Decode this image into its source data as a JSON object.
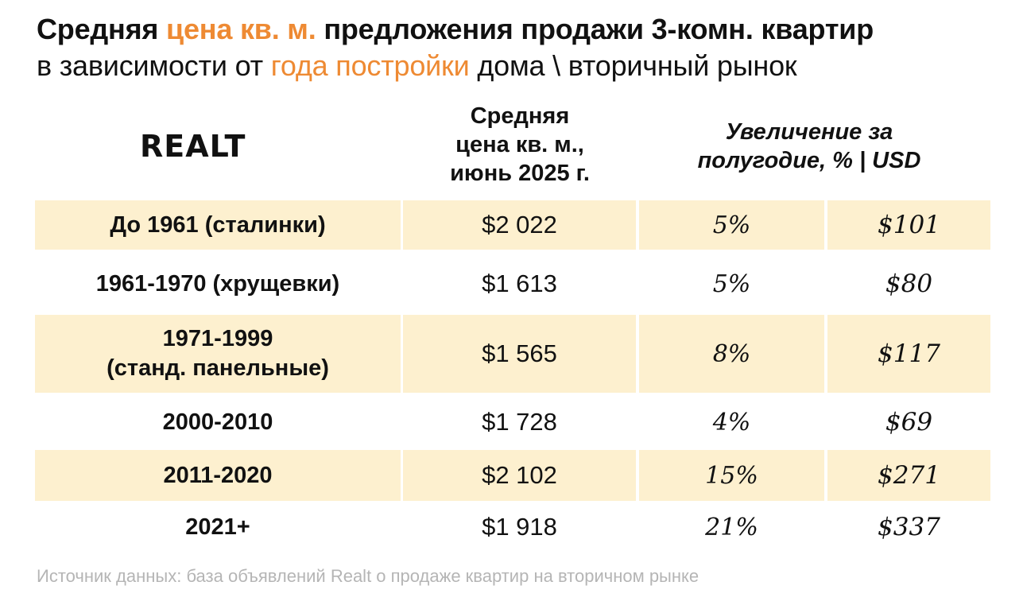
{
  "title": {
    "part1": "Средняя ",
    "accent1": "цена кв. м.",
    "part2": " предложения продажи 3-комн. квартир"
  },
  "subtitle": {
    "part1": "в зависимости от ",
    "accent2": "года постройки",
    "part2": " дома \\ вторичный рынок"
  },
  "logo": "REALT",
  "colors": {
    "accent": "#ee8a33",
    "row_shade": "#fdf0cf",
    "source_text": "#b5b5b5"
  },
  "chart_data": {
    "type": "table",
    "columns": {
      "price_header": [
        "Средняя",
        "цена кв. м.,",
        "июнь 2025 г."
      ],
      "growth_header": [
        "Увеличение за",
        "полугодие, % | USD"
      ]
    },
    "rows": [
      {
        "label_lines": [
          "До 1961 (сталинки)"
        ],
        "price": "$2 022",
        "pct": "5%",
        "usd": "$101",
        "price_value": 2022,
        "pct_value": 5,
        "usd_value": 101
      },
      {
        "label_lines": [
          "1961-1970 (хрущевки)"
        ],
        "price": "$1 613",
        "pct": "5%",
        "usd": "$80",
        "price_value": 1613,
        "pct_value": 5,
        "usd_value": 80
      },
      {
        "label_lines": [
          "1971-1999",
          "(станд. панельные)"
        ],
        "price": "$1 565",
        "pct": "8%",
        "usd": "$117",
        "price_value": 1565,
        "pct_value": 8,
        "usd_value": 117
      },
      {
        "label_lines": [
          "2000-2010"
        ],
        "price": "$1 728",
        "pct": "4%",
        "usd": "$69",
        "price_value": 1728,
        "pct_value": 4,
        "usd_value": 69
      },
      {
        "label_lines": [
          "2011-2020"
        ],
        "price": "$2 102",
        "pct": "15%",
        "usd": "$271",
        "price_value": 2102,
        "pct_value": 15,
        "usd_value": 271
      },
      {
        "label_lines": [
          "2021+"
        ],
        "price": "$1 918",
        "pct": "21%",
        "usd": "$337",
        "price_value": 1918,
        "pct_value": 21,
        "usd_value": 337
      }
    ]
  },
  "source": "Источник данных: база объявлений Realt о продаже квартир на вторичном рынке"
}
